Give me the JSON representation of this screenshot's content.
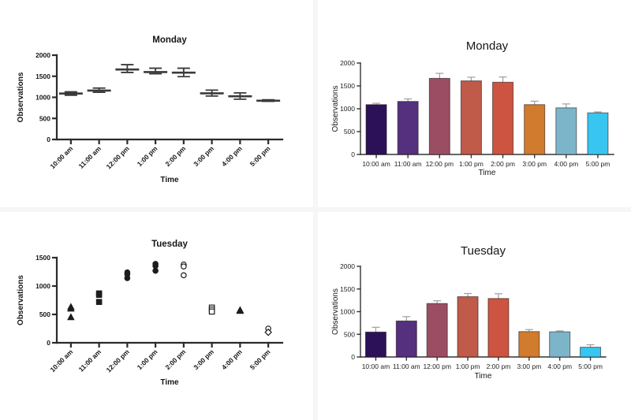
{
  "page": {
    "background": "#ffffff",
    "divider_color": "#f6f6f6"
  },
  "bar_palette": [
    "#2d1158",
    "#54307e",
    "#9b4e63",
    "#c05a49",
    "#cd5440",
    "#d07b2d",
    "#7cb5c9",
    "#38c5f0"
  ],
  "chart_data": [
    {
      "id": "monday-mean-sd",
      "type": "errorbar",
      "title": "Monday",
      "xlabel": "Time",
      "ylabel": "Observations",
      "categories": [
        "10:00 am",
        "11:00 am",
        "12:00 pm",
        "1:00 pm",
        "2:00 pm",
        "3:00 pm",
        "4:00 pm",
        "5:00 pm"
      ],
      "ylim": [
        0,
        2000
      ],
      "yticks": [
        0,
        500,
        1000,
        1500,
        2000
      ],
      "mean": [
        1090,
        1160,
        1660,
        1600,
        1585,
        1095,
        1025,
        920
      ],
      "low": [
        1050,
        1120,
        1590,
        1560,
        1490,
        1030,
        955,
        905
      ],
      "high": [
        1130,
        1220,
        1775,
        1690,
        1690,
        1170,
        1105,
        940
      ],
      "stroke_color": "#3a3a3a",
      "grid": false,
      "legend": "none"
    },
    {
      "id": "monday-bars",
      "type": "bar",
      "title": "Monday",
      "xlabel": "Time",
      "ylabel": "Observations",
      "categories": [
        "10:00 am",
        "11:00 am",
        "12:00 pm",
        "1:00 pm",
        "2:00 pm",
        "3:00 pm",
        "4:00 pm",
        "5:00 pm"
      ],
      "ylim": [
        0,
        2000
      ],
      "yticks": [
        0,
        500,
        1000,
        1500,
        2000
      ],
      "values": [
        1090,
        1160,
        1665,
        1610,
        1580,
        1090,
        1020,
        910
      ],
      "error_high": [
        1120,
        1215,
        1775,
        1690,
        1695,
        1165,
        1105,
        930
      ],
      "error_color": "#9e9e9e",
      "grid": false,
      "legend": "none"
    },
    {
      "id": "tuesday-scatter",
      "type": "scatter",
      "title": "Tuesday",
      "xlabel": "Time",
      "ylabel": "Observations",
      "ylim": [
        0,
        1500
      ],
      "yticks": [
        0,
        500,
        1000,
        1500
      ],
      "marker_color": "#1c1c1c",
      "groups": [
        {
          "category": "10:00 am",
          "marker": "triangle-filled",
          "values": [
            630,
            600,
            450
          ]
        },
        {
          "category": "11:00 am",
          "marker": "square-filled",
          "values": [
            870,
            845,
            720
          ]
        },
        {
          "category": "12:00 pm",
          "marker": "circle-filled",
          "values": [
            1240,
            1205,
            1140
          ]
        },
        {
          "category": "1:00 pm",
          "marker": "circle-filled",
          "values": [
            1390,
            1355,
            1270
          ]
        },
        {
          "category": "2:00 pm",
          "marker": "circle-open",
          "values": [
            1380,
            1345,
            1190
          ]
        },
        {
          "category": "3:00 pm",
          "marker": "square-open",
          "values": [
            620,
            585,
            550
          ]
        },
        {
          "category": "4:00 pm",
          "marker": "triangle-filled",
          "values": [
            575,
            560
          ]
        },
        {
          "category": "5:00 pm",
          "marker": "diamond-open",
          "markers": [
            "circle-open",
            "diamond-open"
          ],
          "values": [
            250,
            185
          ]
        }
      ],
      "grid": false,
      "legend": "none"
    },
    {
      "id": "tuesday-bars",
      "type": "bar",
      "title": "Tuesday",
      "xlabel": "Time",
      "ylabel": "Observations",
      "categories": [
        "10:00 am",
        "11:00 am",
        "12:00 pm",
        "1:00 pm",
        "2:00 pm",
        "3:00 pm",
        "4:00 pm",
        "5:00 pm"
      ],
      "ylim": [
        0,
        2000
      ],
      "yticks": [
        0,
        500,
        1000,
        1500,
        2000
      ],
      "values": [
        550,
        795,
        1180,
        1330,
        1290,
        560,
        555,
        215
      ],
      "error_high": [
        655,
        890,
        1240,
        1400,
        1395,
        605,
        575,
        270
      ],
      "error_color": "#9e9e9e",
      "grid": false,
      "legend": "none"
    }
  ]
}
